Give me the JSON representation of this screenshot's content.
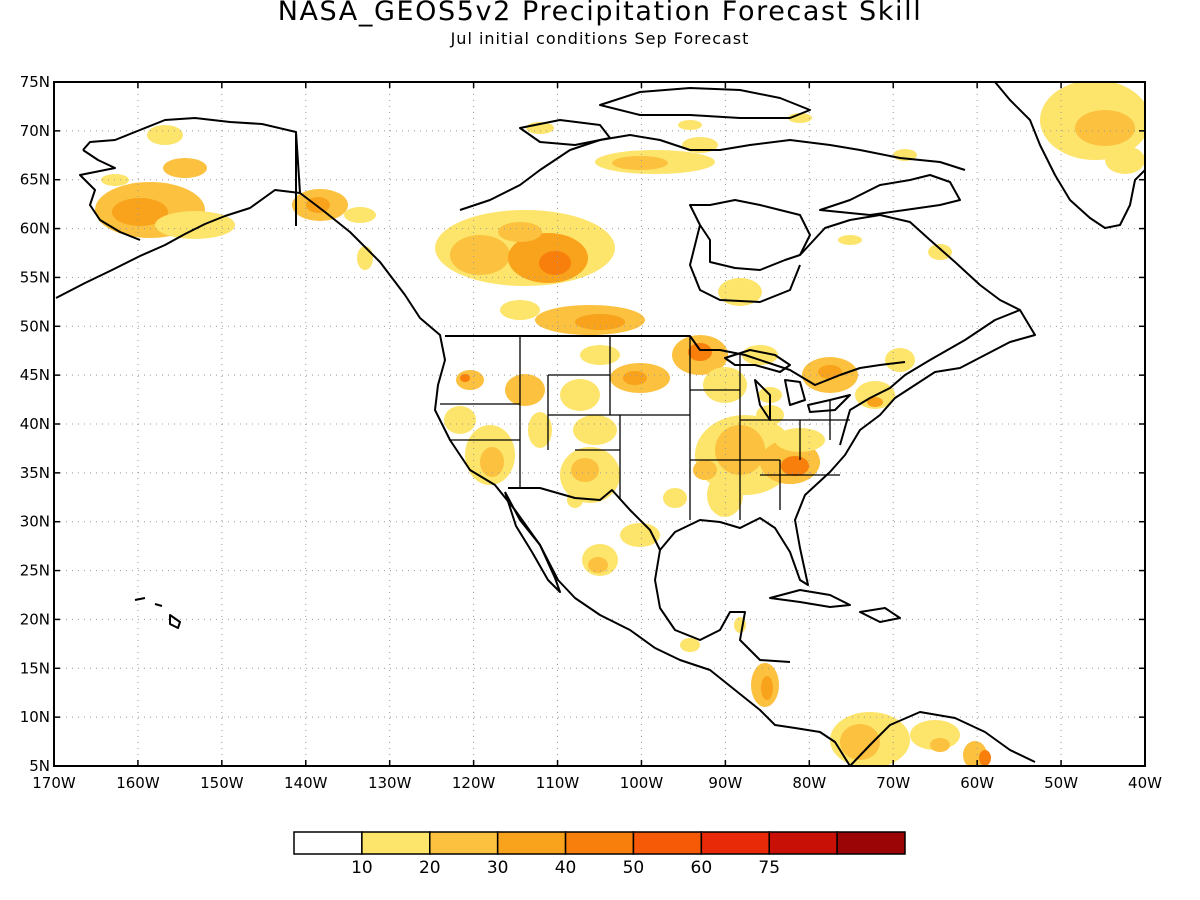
{
  "title": "NASA_GEOS5v2 Precipitation Forecast Skill",
  "subtitle": "Jul initial conditions   Sep Forecast",
  "lat_labels": [
    "75N",
    "70N",
    "65N",
    "60N",
    "55N",
    "50N",
    "45N",
    "40N",
    "35N",
    "30N",
    "25N",
    "20N",
    "15N",
    "10N",
    "5N"
  ],
  "lon_labels": [
    "170W",
    "160W",
    "150W",
    "140W",
    "130W",
    "120W",
    "110W",
    "100W",
    "90W",
    "80W",
    "70W",
    "60W",
    "50W",
    "40W"
  ],
  "lat_range": [
    5,
    75
  ],
  "lon_range": [
    -170,
    -40
  ],
  "colorbar": {
    "colors": [
      "#ffffff",
      "#fde46b",
      "#fbc13f",
      "#f9a21b",
      "#f97f0c",
      "#f65a06",
      "#e82a08",
      "#c81007",
      "#9c0505"
    ],
    "labels": [
      "10",
      "20",
      "30",
      "40",
      "50",
      "60",
      "75"
    ]
  },
  "map_data": {
    "variable": "Precipitation Forecast Skill",
    "units": "",
    "regions_shown": [
      "Alaska",
      "Canada",
      "United States",
      "Mexico",
      "Central America",
      "Caribbean",
      "Greenland",
      "northern South America"
    ]
  }
}
